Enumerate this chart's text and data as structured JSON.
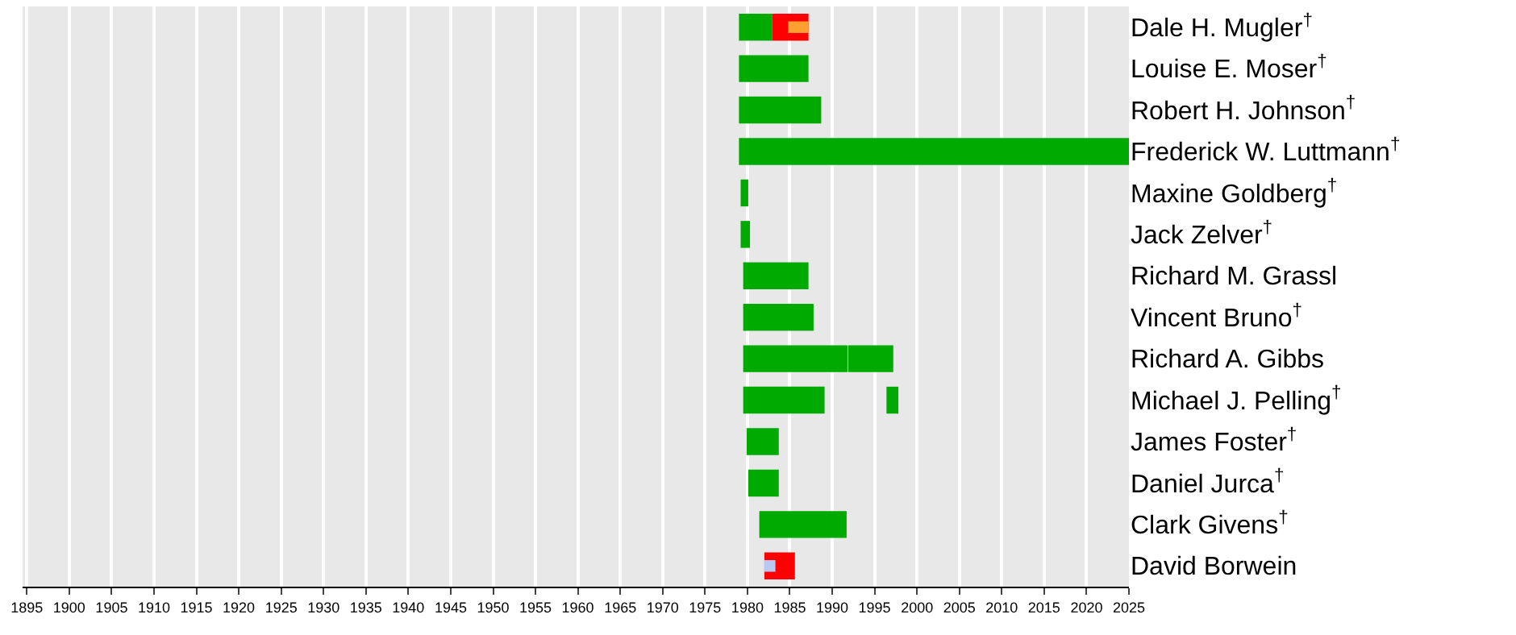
{
  "chart_data": {
    "type": "bar",
    "orientation": "horizontal",
    "categories": [
      "Dale H. Mugler$^{†}$",
      "Louise E. Moser$^{†}$",
      "Robert H. Johnson$^{†}$",
      "Frederick W. Luttmann$^{†}$",
      "Maxine Goldberg$^{†}$",
      "Jack Zelver$^{†}$",
      "Richard M. Grassl",
      "Vincent Bruno$^{†}$",
      "Richard A. Gibbs",
      "Michael J. Pelling$^{†}$",
      "James Foster$^{†}$",
      "Daniel Jurca$^{†}$",
      "Clark Givens$^{†}$",
      "David Borwein"
    ],
    "series": [
      {
        "color": "#00aa00",
        "base": [
          1979.0,
          1979.0,
          1979.0,
          1979.0,
          1979.2,
          1979.2,
          1979.5,
          1979.5,
          1979.5,
          1979.5,
          1979.9,
          1980.1,
          1981.4,
          null
        ],
        "values": [
          3.9,
          8.2,
          9.7,
          46.0,
          0.9,
          1.1,
          7.7,
          8.3,
          12.3,
          9.6,
          3.8,
          3.6,
          10.3,
          null
        ]
      },
      {
        "color": "#00aa00",
        "base": [
          null,
          null,
          null,
          null,
          null,
          null,
          null,
          null,
          1991.9,
          1996.4,
          null,
          null,
          null,
          null
        ],
        "values": [
          null,
          null,
          null,
          null,
          null,
          null,
          null,
          null,
          5.3,
          1.4,
          null,
          null,
          null,
          null
        ]
      },
      {
        "color": "#ff0000",
        "base": [
          1982.9,
          null,
          null,
          null,
          null,
          null,
          null,
          null,
          null,
          null,
          null,
          null,
          null,
          1982.0
        ],
        "values": [
          4.3,
          null,
          null,
          null,
          null,
          null,
          null,
          null,
          null,
          null,
          null,
          null,
          null,
          3.6
        ]
      },
      {
        "color": "#ffa030",
        "base": [
          1984.8,
          null,
          null,
          null,
          null,
          null,
          null,
          null,
          null,
          null,
          null,
          null,
          null,
          null
        ],
        "values": [
          2.4,
          null,
          null,
          null,
          null,
          null,
          null,
          null,
          null,
          null,
          null,
          null,
          null,
          null
        ]
      },
      {
        "color": "#b8c8f0",
        "base": [
          null,
          null,
          null,
          null,
          null,
          null,
          null,
          null,
          null,
          null,
          null,
          null,
          null,
          1982.0
        ],
        "values": [
          null,
          null,
          null,
          null,
          null,
          null,
          null,
          null,
          null,
          null,
          null,
          null,
          null,
          1.3
        ]
      }
    ],
    "xlim": [
      1894.5,
      2025
    ],
    "xticks": [
      1895,
      1900,
      1905,
      1910,
      1915,
      1920,
      1925,
      1930,
      1935,
      1940,
      1945,
      1950,
      1955,
      1960,
      1965,
      1970,
      1975,
      1980,
      1985,
      1990,
      1995,
      2000,
      2005,
      2010,
      2015,
      2020,
      2025
    ],
    "grid": "x"
  }
}
